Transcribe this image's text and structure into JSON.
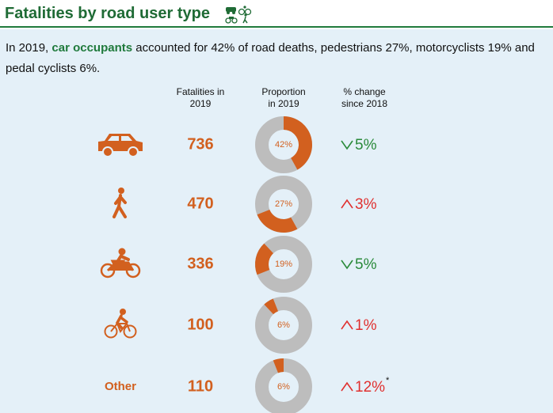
{
  "header": {
    "title": "Fatalities by road user type"
  },
  "intro": [
    "In 2019, ",
    "car occupants",
    " accounted for 42% of road deaths, pedestrians 27%, motorcyclists 19% and pedal cyclists 6%."
  ],
  "columns": [
    [
      "Fatalities in",
      "2019"
    ],
    [
      "Proportion",
      "in 2019"
    ],
    [
      "% change",
      "since 2018"
    ]
  ],
  "rows": [
    {
      "fatalities": "736",
      "proportion": 42,
      "proportion_label": "42%",
      "change": "5%",
      "direction": "down"
    },
    {
      "fatalities": "470",
      "proportion": 27,
      "proportion_label": "27%",
      "change": "3%",
      "direction": "up"
    },
    {
      "fatalities": "336",
      "proportion": 19,
      "proportion_label": "19%",
      "change": "5%",
      "direction": "down"
    },
    {
      "fatalities": "100",
      "proportion": 6,
      "proportion_label": "6%",
      "change": "1%",
      "direction": "up"
    },
    {
      "label": "Other",
      "fatalities": "110",
      "proportion": 6,
      "proportion_label": "6%",
      "change": "12%",
      "direction": "up",
      "footnote_mark": "*"
    }
  ],
  "colors": {
    "accent": "#d2601f",
    "ring": "#bdbdbd",
    "down": "#2a8a3a",
    "up": "#e0302f"
  }
}
